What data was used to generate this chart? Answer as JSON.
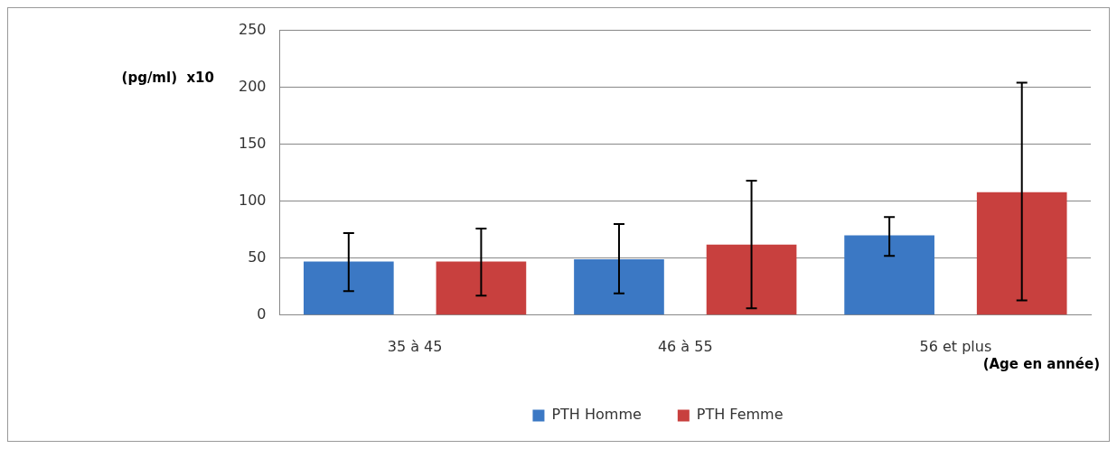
{
  "chart_data": {
    "type": "bar",
    "ylabel": "(pg/ml)  x10",
    "xlabel": "(Age en année)",
    "categories": [
      "35 à 45",
      "46 à 55",
      "56 et plus"
    ],
    "series": [
      {
        "name": "PTH Homme",
        "color": "#3b78c4",
        "values": [
          47,
          49,
          70
        ],
        "errors": [
          [
            21,
            72
          ],
          [
            19,
            80
          ],
          [
            52,
            86
          ]
        ]
      },
      {
        "name": "PTH Femme",
        "color": "#c8403e",
        "values": [
          47,
          62,
          108
        ],
        "errors": [
          [
            17,
            76
          ],
          [
            6,
            118
          ],
          [
            13,
            204
          ]
        ]
      }
    ],
    "ylim": [
      0,
      250
    ],
    "yticks": [
      0,
      50,
      100,
      150,
      200,
      250
    ],
    "grid": "y",
    "legend": "bottom"
  }
}
